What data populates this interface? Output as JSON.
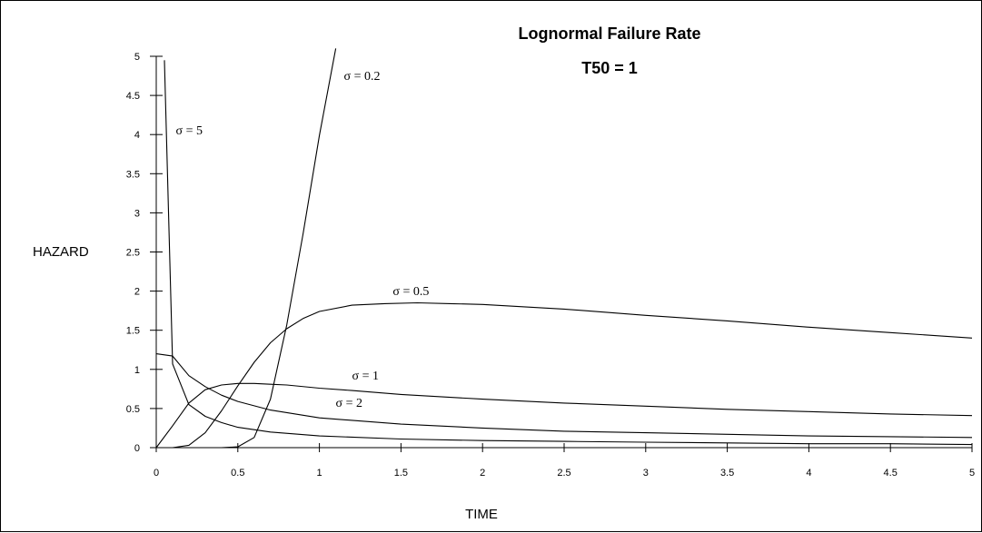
{
  "chart_data": {
    "type": "line",
    "title": "Lognormal Failure Rate",
    "subtitle": "T50 = 1",
    "xlabel": "TIME",
    "ylabel": "HAZARD",
    "xlim": [
      0,
      5
    ],
    "ylim": [
      0,
      5
    ],
    "x_ticks": [
      "0",
      "0.5",
      "1",
      "1.5",
      "2",
      "2.5",
      "3",
      "3.5",
      "4",
      "4.5",
      "5"
    ],
    "y_ticks": [
      "0",
      "0.5",
      "1",
      "1.5",
      "2",
      "2.5",
      "3",
      "3.5",
      "4",
      "4.5",
      "5"
    ],
    "grid": false,
    "legend": "none",
    "line_color": "#000000",
    "series": [
      {
        "name": "σ = 0.2",
        "x": [
          0,
          0.1,
          0.2,
          0.3,
          0.4,
          0.5,
          0.6,
          0.7,
          0.8,
          0.9,
          1.0,
          1.1
        ],
        "y": [
          0,
          0,
          0,
          0,
          0,
          0.01,
          0.13,
          0.62,
          1.57,
          2.73,
          3.99,
          5.1
        ]
      },
      {
        "name": "σ = 0.5",
        "x": [
          0,
          0.1,
          0.2,
          0.3,
          0.4,
          0.5,
          0.6,
          0.7,
          0.8,
          0.9,
          1.0,
          1.2,
          1.4,
          1.6,
          1.8,
          2.0,
          2.5,
          3.0,
          3.5,
          4.0,
          4.5,
          5.0
        ],
        "y": [
          0,
          0,
          0.03,
          0.19,
          0.47,
          0.79,
          1.09,
          1.34,
          1.52,
          1.65,
          1.74,
          1.82,
          1.84,
          1.85,
          1.84,
          1.83,
          1.77,
          1.69,
          1.62,
          1.54,
          1.47,
          1.4
        ]
      },
      {
        "name": "σ = 1",
        "x": [
          0,
          0.1,
          0.2,
          0.3,
          0.4,
          0.5,
          0.6,
          0.7,
          0.8,
          1.0,
          1.2,
          1.5,
          2.0,
          2.5,
          3.0,
          3.5,
          4.0,
          4.5,
          5.0
        ],
        "y": [
          0,
          0.28,
          0.57,
          0.74,
          0.8,
          0.82,
          0.82,
          0.81,
          0.8,
          0.76,
          0.73,
          0.68,
          0.62,
          0.57,
          0.53,
          0.49,
          0.46,
          0.43,
          0.41
        ]
      },
      {
        "name": "σ = 2",
        "x": [
          0,
          0.1,
          0.2,
          0.3,
          0.4,
          0.5,
          0.7,
          1.0,
          1.5,
          2.0,
          2.5,
          3.0,
          3.5,
          4.0,
          4.5,
          5.0
        ],
        "y": [
          1.2,
          1.17,
          0.92,
          0.78,
          0.67,
          0.59,
          0.48,
          0.38,
          0.3,
          0.25,
          0.21,
          0.19,
          0.17,
          0.15,
          0.14,
          0.13
        ]
      },
      {
        "name": "σ = 5",
        "x": [
          0.05,
          0.1,
          0.2,
          0.3,
          0.4,
          0.5,
          0.7,
          1.0,
          1.5,
          2.0,
          2.5,
          3.0,
          3.5,
          4.0,
          4.5,
          5.0
        ],
        "y": [
          4.95,
          1.07,
          0.55,
          0.4,
          0.32,
          0.26,
          0.2,
          0.15,
          0.11,
          0.09,
          0.08,
          0.07,
          0.06,
          0.05,
          0.05,
          0.04
        ]
      }
    ],
    "annotations": [
      {
        "text": "σ = 0.2",
        "x": 1.15,
        "y": 4.7
      },
      {
        "text": "σ = 5",
        "x": 0.12,
        "y": 4.0
      },
      {
        "text": "σ = 0.5",
        "x": 1.45,
        "y": 1.95
      },
      {
        "text": "σ = 1",
        "x": 1.2,
        "y": 0.87
      },
      {
        "text": "σ = 2",
        "x": 1.1,
        "y": 0.52
      }
    ]
  }
}
